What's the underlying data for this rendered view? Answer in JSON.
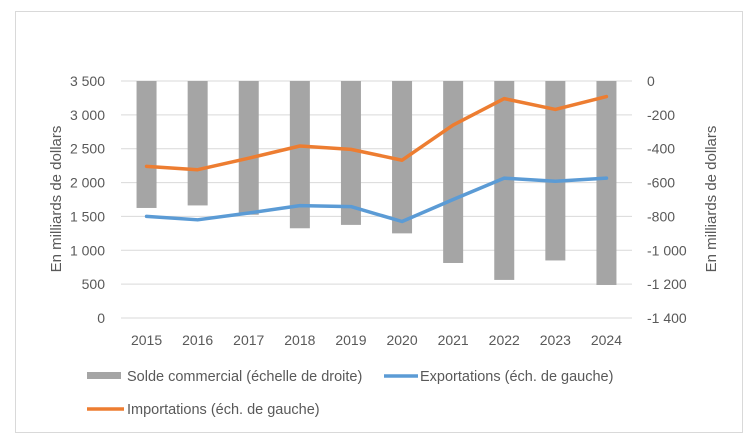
{
  "chart_data": {
    "type": "bar+line",
    "title": "",
    "categories": [
      "2015",
      "2016",
      "2017",
      "2018",
      "2019",
      "2020",
      "2021",
      "2022",
      "2023",
      "2024"
    ],
    "series": [
      {
        "name": "Solde commercial (échelle de droite)",
        "type": "bar",
        "axis": "right",
        "color": "#a5a5a5",
        "values": [
          -750,
          -735,
          -790,
          -870,
          -850,
          -900,
          -1075,
          -1175,
          -1060,
          -1205
        ]
      },
      {
        "name": "Exportations (éch. de gauche)",
        "type": "line",
        "axis": "left",
        "color": "#5b9bd5",
        "values": [
          1500,
          1450,
          1550,
          1660,
          1645,
          1425,
          1750,
          2065,
          2020,
          2065
        ]
      },
      {
        "name": "Importations (éch. de gauche)",
        "type": "line",
        "axis": "left",
        "color": "#ed7d31",
        "values": [
          2240,
          2190,
          2360,
          2540,
          2490,
          2330,
          2850,
          3240,
          3080,
          3270
        ]
      }
    ],
    "y_left": {
      "label": "En milliards de dollars",
      "range": [
        0,
        3500
      ],
      "ticks": [
        0,
        500,
        1000,
        1500,
        2000,
        2500,
        3000,
        3500
      ],
      "tick_labels": [
        "0",
        "500",
        "1 000",
        "1 500",
        "2 000",
        "2 500",
        "3 000",
        "3 500"
      ]
    },
    "y_right": {
      "label": "En milliards de dollars",
      "range": [
        -1400,
        0
      ],
      "ticks": [
        0,
        -200,
        -400,
        -600,
        -800,
        -1000,
        -1200,
        -1400
      ],
      "tick_labels": [
        "0",
        "-200",
        "-400",
        "-600",
        "-800",
        "-1 000",
        "-1 200",
        "-1 400"
      ]
    },
    "xlabel": "",
    "grid": true,
    "legend": {
      "position": "bottom",
      "entries": [
        {
          "label": "Solde commercial (échelle de droite)",
          "symbol": "box",
          "color": "#a5a5a5"
        },
        {
          "label": "Exportations (éch. de gauche)",
          "symbol": "line",
          "color": "#5b9bd5"
        },
        {
          "label": "Importations (éch. de gauche)",
          "symbol": "line",
          "color": "#ed7d31"
        }
      ]
    }
  }
}
